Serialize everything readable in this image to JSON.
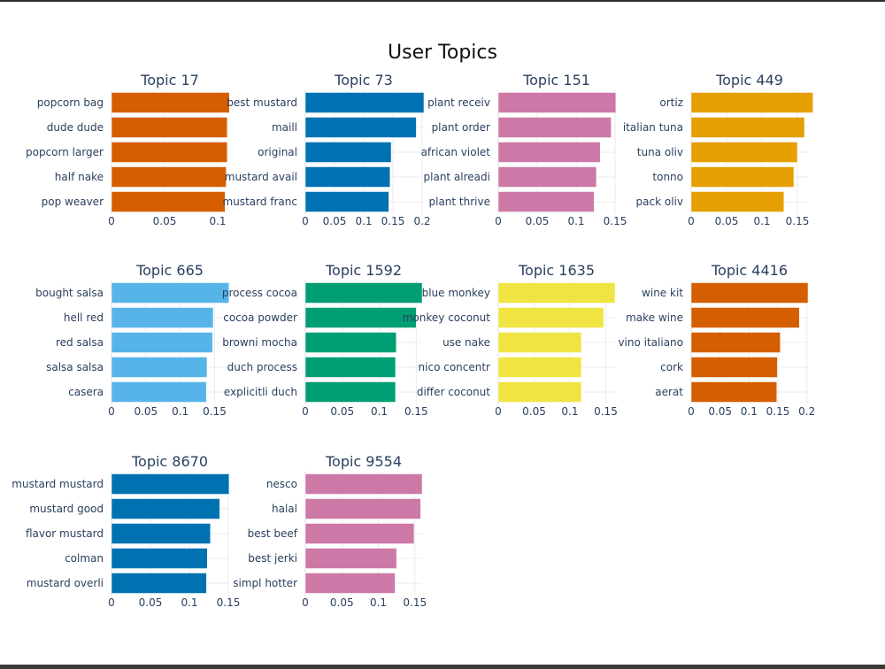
{
  "chart_data": {
    "type": "bar",
    "orientation": "horizontal",
    "title": "User Topics",
    "grid": true,
    "panels": [
      {
        "title": "Topic 17",
        "color": "#D55E00",
        "xlim": [
          0,
          0.11
        ],
        "xticks": [
          0,
          0.05,
          0.1
        ],
        "tick_labels": [
          "0",
          "0.05",
          "0.1"
        ],
        "categories": [
          "popcorn bag",
          "dude dude",
          "popcorn larger",
          "half nake",
          "pop weaver"
        ],
        "values": [
          0.111,
          0.109,
          0.109,
          0.108,
          0.107
        ]
      },
      {
        "title": "Topic 73",
        "color": "#0072B2",
        "xlim": [
          0,
          0.2
        ],
        "xticks": [
          0,
          0.05,
          0.1,
          0.15,
          0.2
        ],
        "tick_labels": [
          "0",
          "0.05",
          "0.1",
          "0.15",
          "0.2"
        ],
        "categories": [
          "best mustard",
          "maill",
          "original",
          "mustard avail",
          "mustard franc"
        ],
        "values": [
          0.203,
          0.19,
          0.147,
          0.145,
          0.143
        ]
      },
      {
        "title": "Topic 151",
        "color": "#CC79A7",
        "xlim": [
          0,
          0.15
        ],
        "xticks": [
          0,
          0.05,
          0.1,
          0.15
        ],
        "tick_labels": [
          "0",
          "0.05",
          "0.1",
          "0.15"
        ],
        "categories": [
          "plant receiv",
          "plant order",
          "african violet",
          "plant alreadi",
          "plant thrive"
        ],
        "values": [
          0.151,
          0.145,
          0.131,
          0.126,
          0.123
        ]
      },
      {
        "title": "Topic 449",
        "color": "#E69F00",
        "xlim": [
          0,
          0.165
        ],
        "xticks": [
          0,
          0.05,
          0.1,
          0.15
        ],
        "tick_labels": [
          "0",
          "0.05",
          "0.1",
          "0.15"
        ],
        "categories": [
          "ortiz",
          "italian tuna",
          "tuna oliv",
          "tonno",
          "pack oliv"
        ],
        "values": [
          0.172,
          0.16,
          0.15,
          0.145,
          0.131
        ]
      },
      {
        "title": "Topic 665",
        "color": "#56B4E9",
        "xlim": [
          0,
          0.17
        ],
        "xticks": [
          0,
          0.05,
          0.1,
          0.15
        ],
        "tick_labels": [
          "0",
          "0.05",
          "0.1",
          "0.15"
        ],
        "categories": [
          "bought salsa",
          "hell red",
          "red salsa",
          "salsa salsa",
          "casera"
        ],
        "values": [
          0.171,
          0.148,
          0.147,
          0.139,
          0.138
        ]
      },
      {
        "title": "Topic 1592",
        "color": "#009E73",
        "xlim": [
          0,
          0.158
        ],
        "xticks": [
          0,
          0.05,
          0.1,
          0.15
        ],
        "tick_labels": [
          "0",
          "0.05",
          "0.1",
          "0.15"
        ],
        "categories": [
          "process cocoa",
          "cocoa powder",
          "browni mocha",
          "duch process",
          "explicitli duch"
        ],
        "values": [
          0.158,
          0.15,
          0.123,
          0.122,
          0.122
        ]
      },
      {
        "title": "Topic 1635",
        "color": "#F0E442",
        "xlim": [
          0,
          0.163
        ],
        "xticks": [
          0,
          0.05,
          0.1,
          0.15
        ],
        "tick_labels": [
          "0",
          "0.05",
          "0.1",
          "0.15"
        ],
        "categories": [
          "blue monkey",
          "monkey coconut",
          "use nake",
          "nico concentr",
          "differ coconut"
        ],
        "values": [
          0.163,
          0.147,
          0.116,
          0.116,
          0.116
        ]
      },
      {
        "title": "Topic 4416",
        "color": "#D55E00",
        "xlim": [
          0,
          0.202
        ],
        "xticks": [
          0,
          0.05,
          0.1,
          0.15,
          0.2
        ],
        "tick_labels": [
          "0",
          "0.05",
          "0.1",
          "0.15",
          "0.2"
        ],
        "categories": [
          "wine kit",
          "make wine",
          "vino italiano",
          "cork",
          "aerat"
        ],
        "values": [
          0.202,
          0.187,
          0.154,
          0.149,
          0.148
        ]
      },
      {
        "title": "Topic 8670",
        "color": "#0072B2",
        "xlim": [
          0,
          0.15
        ],
        "xticks": [
          0,
          0.05,
          0.1,
          0.15
        ],
        "tick_labels": [
          "0",
          "0.05",
          "0.1",
          "0.15"
        ],
        "categories": [
          "mustard mustard",
          "mustard good",
          "flavor mustard",
          "colman",
          "mustard overli"
        ],
        "values": [
          0.151,
          0.139,
          0.127,
          0.123,
          0.122
        ]
      },
      {
        "title": "Topic 9554",
        "color": "#CC79A7",
        "xlim": [
          0,
          0.16
        ],
        "xticks": [
          0,
          0.05,
          0.1,
          0.15
        ],
        "tick_labels": [
          "0",
          "0.05",
          "0.1",
          "0.15"
        ],
        "categories": [
          "nesco",
          "halal",
          "best beef",
          "best jerki",
          "simpl hotter"
        ],
        "values": [
          0.16,
          0.158,
          0.149,
          0.125,
          0.123
        ]
      }
    ]
  }
}
